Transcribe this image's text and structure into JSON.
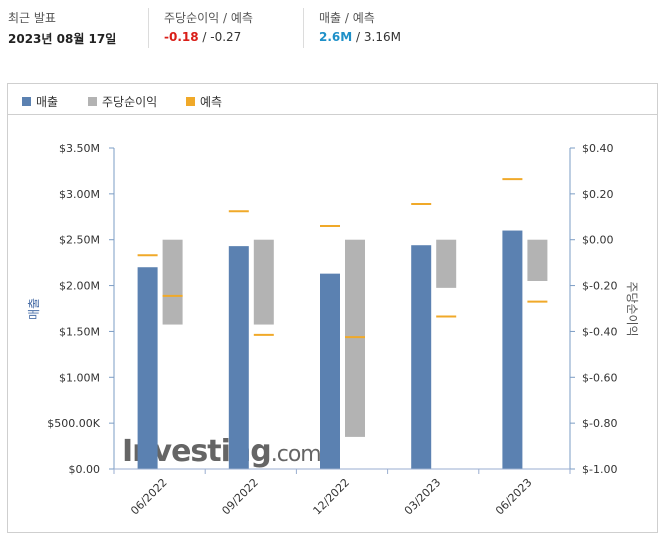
{
  "summary": {
    "last_release_label": "최근 발표",
    "last_release_date": "2023년 08월 17일",
    "eps_label": "주당순이익 / 예측",
    "eps_actual": "-0.18",
    "eps_forecast": " / -0.27",
    "revenue_label": "매출 / 예측",
    "revenue_actual": "2.6M",
    "revenue_forecast": " / 3.16M"
  },
  "legend": {
    "revenue": "매출",
    "eps": "주당순이익",
    "forecast": "예측"
  },
  "colors": {
    "revenue": "#5b81b1",
    "eps": "#b3b3b3",
    "forecast": "#f0a929",
    "eps_negative": "#d91e18",
    "revenue_positive": "#1e90c8"
  },
  "watermark": "Investing.com",
  "chart_data": {
    "type": "bar",
    "categories": [
      "06/2022",
      "09/2022",
      "12/2022",
      "03/2023",
      "06/2023"
    ],
    "left_axis": {
      "label": "매출",
      "ticks": [
        "$0.00",
        "$500.00K",
        "$1.00M",
        "$1.50M",
        "$2.00M",
        "$2.50M",
        "$3.00M",
        "$3.50M"
      ],
      "ylim": [
        0,
        3500000
      ]
    },
    "right_axis": {
      "label": "주당순이익",
      "ticks": [
        "$-1.00",
        "$-0.80",
        "$-0.60",
        "$-0.40",
        "$-0.20",
        "$0.00",
        "$0.20",
        "$0.40"
      ],
      "ylim": [
        -1.0,
        0.4
      ]
    },
    "series": [
      {
        "name": "매출",
        "axis": "left",
        "values": [
          2200000,
          2430000,
          2130000,
          2440000,
          2600000
        ]
      },
      {
        "name": "매출 예측",
        "axis": "left",
        "values": [
          2330000,
          2810000,
          2650000,
          2890000,
          3160000
        ]
      },
      {
        "name": "주당순이익",
        "axis": "right",
        "values": [
          -0.37,
          -0.37,
          -0.86,
          -0.21,
          -0.18
        ]
      },
      {
        "name": "주당순이익 예측",
        "axis": "right",
        "values": [
          -0.245,
          -0.415,
          -0.425,
          -0.335,
          -0.27
        ]
      }
    ]
  }
}
